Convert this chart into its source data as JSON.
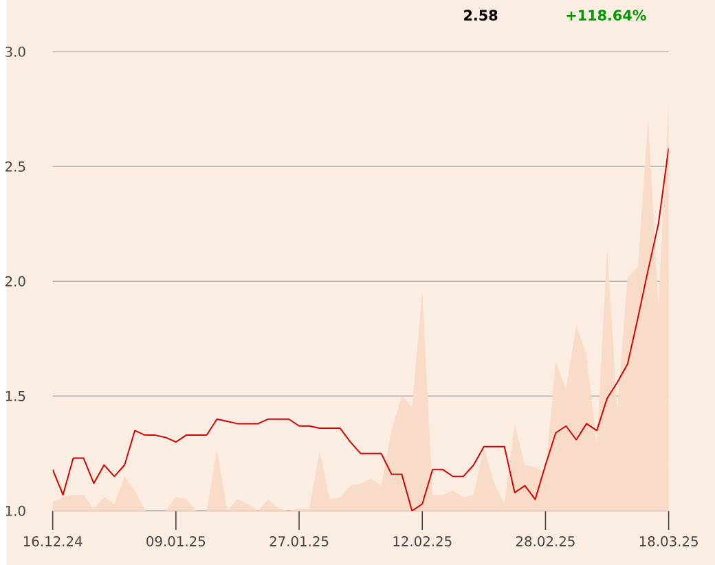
{
  "chart_data": {
    "type": "line",
    "categories": [
      "16.12.24",
      null,
      null,
      null,
      null,
      null,
      null,
      null,
      null,
      null,
      null,
      null,
      "09.01.25",
      null,
      null,
      null,
      null,
      null,
      null,
      null,
      null,
      null,
      null,
      null,
      "27.01.25",
      null,
      null,
      null,
      null,
      null,
      null,
      null,
      null,
      null,
      null,
      null,
      "12.02.25",
      null,
      null,
      null,
      null,
      null,
      null,
      null,
      null,
      null,
      null,
      null,
      "28.02.25",
      null,
      null,
      null,
      null,
      null,
      null,
      null,
      null,
      null,
      null,
      null,
      "18.03.25"
    ],
    "series": [
      {
        "type": "area",
        "color": "#f9dcc8",
        "values": [
          1.04,
          1.06,
          1.07,
          1.07,
          1.01,
          1.06,
          1.03,
          1.15,
          1.09,
          1.0,
          1.0,
          1.0,
          1.06,
          1.05,
          1.0,
          1.0,
          1.27,
          1.0,
          1.05,
          1.03,
          1.0,
          1.05,
          1.01,
          1.0,
          1.01,
          1.01,
          1.26,
          1.05,
          1.06,
          1.11,
          1.12,
          1.14,
          1.11,
          1.35,
          1.5,
          1.45,
          1.96,
          1.07,
          1.07,
          1.09,
          1.06,
          1.07,
          1.28,
          1.12,
          1.03,
          1.38,
          1.2,
          1.19,
          1.17,
          1.65,
          1.53,
          1.81,
          1.68,
          1.29,
          2.14,
          1.45,
          2.02,
          2.06,
          2.71,
          1.9,
          2.78
        ]
      },
      {
        "color": "#d40000",
        "values": [
          1.18,
          1.07,
          1.23,
          1.23,
          1.12,
          1.2,
          1.15,
          1.2,
          1.35,
          1.33,
          1.33,
          1.32,
          1.3,
          1.33,
          1.33,
          1.33,
          1.4,
          1.39,
          1.38,
          1.38,
          1.38,
          1.4,
          1.4,
          1.4,
          1.37,
          1.37,
          1.36,
          1.36,
          1.36,
          1.3,
          1.25,
          1.25,
          1.25,
          1.16,
          1.16,
          1.0,
          1.03,
          1.18,
          1.18,
          1.15,
          1.15,
          1.2,
          1.28,
          1.28,
          1.28,
          1.08,
          1.11,
          1.05,
          1.2,
          1.34,
          1.37,
          1.31,
          1.38,
          1.35,
          1.49,
          1.56,
          1.64,
          1.84,
          2.05,
          2.25,
          2.58
        ]
      }
    ],
    "ylim": [
      1.0,
      3.0
    ],
    "yticks": [
      {
        "value": 1.0,
        "label": "1.0"
      },
      {
        "value": 1.5,
        "label": "1.5"
      },
      {
        "value": 2.0,
        "label": "2.0"
      },
      {
        "value": 2.5,
        "label": "2.5"
      },
      {
        "value": 3.0,
        "label": "3.0"
      }
    ],
    "grid": "y",
    "annotations": [
      "2.58",
      "+118.64%"
    ]
  }
}
